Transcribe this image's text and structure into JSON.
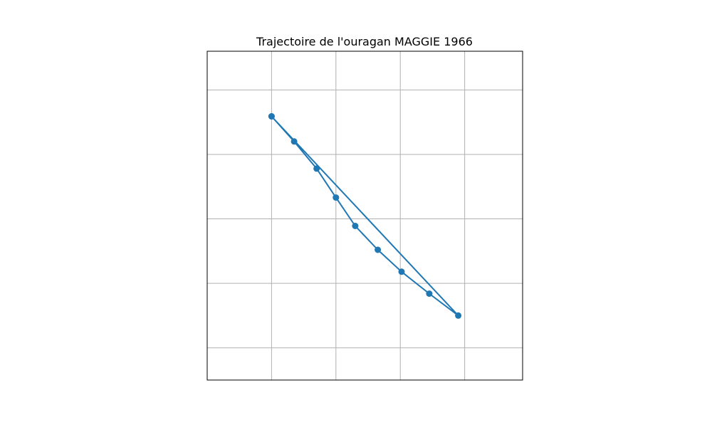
{
  "chart_data": {
    "type": "line",
    "title": "Trajectoire de l'ouragan MAGGIE 1966",
    "xlabel": "",
    "ylabel": "",
    "xlim": [
      0,
      4.9
    ],
    "ylim": [
      0,
      5.1
    ],
    "x_ticks": [
      1,
      2,
      3,
      4
    ],
    "y_ticks": [
      0.5,
      1.5,
      2.5,
      3.5,
      4.5
    ],
    "grid": true,
    "legend": "none",
    "series": [
      {
        "color": "#1f77b4",
        "marker": "circle",
        "points": [
          {
            "x": 1.0,
            "y": 4.09
          },
          {
            "x": 1.35,
            "y": 3.7
          },
          {
            "x": 1.7,
            "y": 3.28
          },
          {
            "x": 2.0,
            "y": 2.83
          },
          {
            "x": 2.3,
            "y": 2.39
          },
          {
            "x": 2.65,
            "y": 2.02
          },
          {
            "x": 3.02,
            "y": 1.68
          },
          {
            "x": 3.45,
            "y": 1.34
          },
          {
            "x": 3.9,
            "y": 1.0
          },
          {
            "x": 1.0,
            "y": 4.09
          }
        ]
      }
    ]
  }
}
